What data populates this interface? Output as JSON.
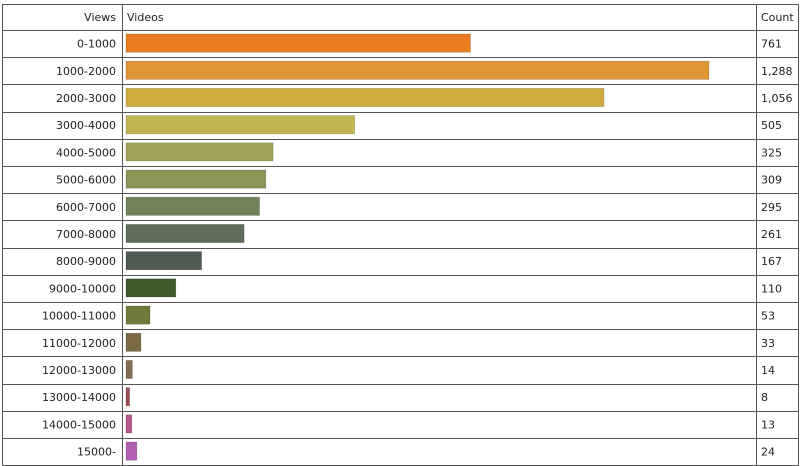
{
  "chart_data": {
    "type": "bar",
    "orientation": "horizontal",
    "columns": {
      "views": "Views",
      "videos": "Videos",
      "count": "Count"
    },
    "categories": [
      "0-1000",
      "1000-2000",
      "2000-3000",
      "3000-4000",
      "4000-5000",
      "5000-6000",
      "6000-7000",
      "7000-8000",
      "8000-9000",
      "9000-10000",
      "10000-11000",
      "11000-12000",
      "12000-13000",
      "13000-14000",
      "14000-15000",
      "15000-"
    ],
    "values": [
      761,
      1288,
      1056,
      505,
      325,
      309,
      295,
      261,
      167,
      110,
      53,
      33,
      14,
      8,
      13,
      24
    ],
    "value_labels": [
      "761",
      "1,288",
      "1,056",
      "505",
      "325",
      "309",
      "295",
      "261",
      "167",
      "110",
      "53",
      "33",
      "14",
      "8",
      "13",
      "24"
    ],
    "colors": [
      "#e87c1e",
      "#df9535",
      "#d0ab3e",
      "#bfb54e",
      "#a3a45a",
      "#8c9558",
      "#6f8259",
      "#5e6d59",
      "#4f5b52",
      "#3e5a2a",
      "#6f7a38",
      "#7c6a45",
      "#846c50",
      "#9c4c55",
      "#b3578f",
      "#b35fb3"
    ]
  }
}
